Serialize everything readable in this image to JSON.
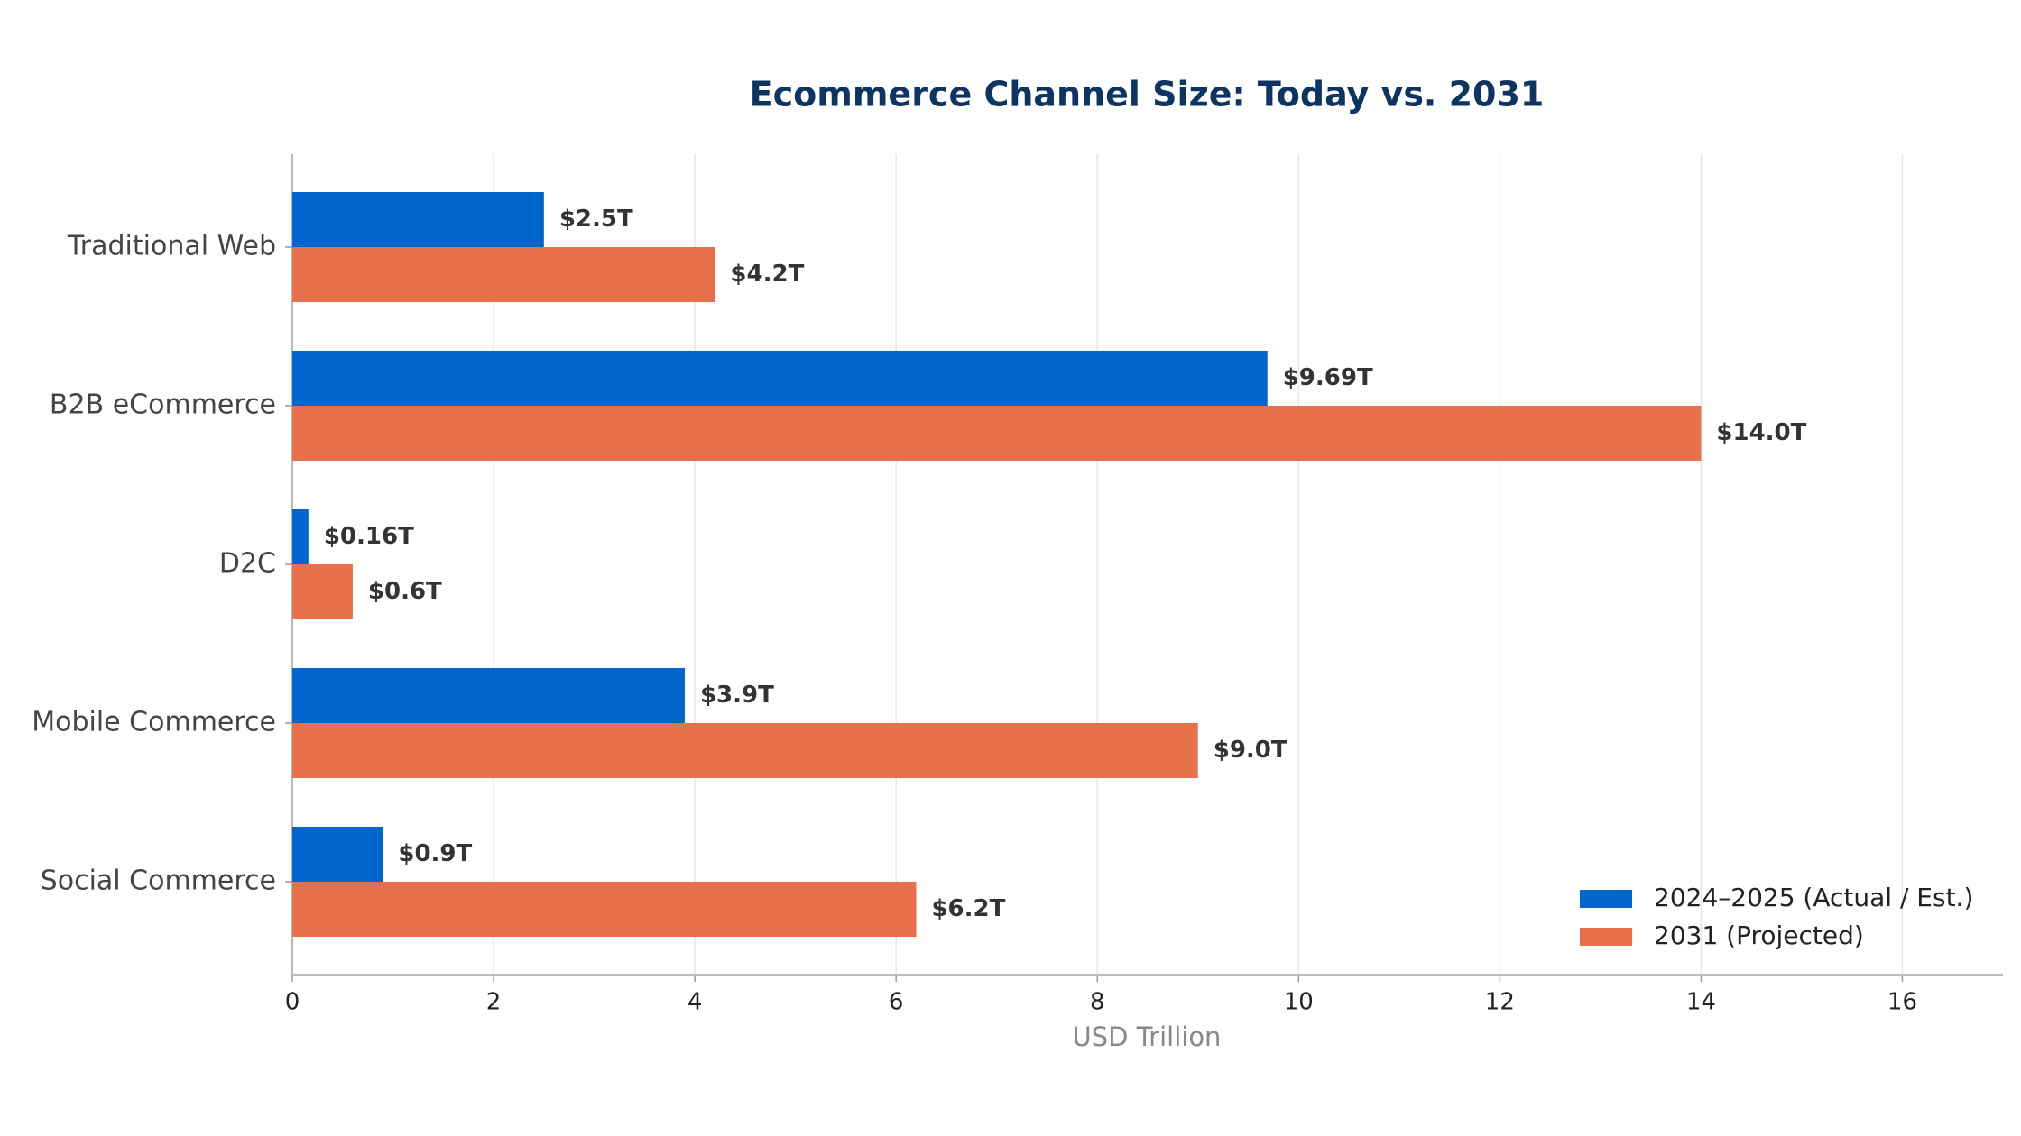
{
  "chart_data": {
    "type": "barh",
    "title": "Ecommerce Channel Size: Today vs. 2031",
    "xlabel": "USD Trillion",
    "categories": [
      "Traditional Web",
      "B2B eCommerce",
      "D2C",
      "Mobile Commerce",
      "Social Commerce"
    ],
    "series": [
      {
        "name": "2024–2025 (Actual / Est.)",
        "color": "#0066cc",
        "values": [
          2.5,
          9.69,
          0.16,
          3.9,
          0.9
        ],
        "value_labels": [
          "$2.5T",
          "$9.69T",
          "$0.16T",
          "$3.9T",
          "$0.9T"
        ]
      },
      {
        "name": "2031 (Projected)",
        "color": "#e8704a",
        "values": [
          4.2,
          14.0,
          0.6,
          9.0,
          6.2
        ],
        "value_labels": [
          "$4.2T",
          "$14.0T",
          "$0.6T",
          "$9.0T",
          "$6.2T"
        ]
      }
    ],
    "xlim": [
      0,
      17
    ],
    "xticks": [
      0,
      2,
      4,
      6,
      8,
      10,
      12,
      14,
      16
    ],
    "grid": true,
    "legend": "lower right"
  }
}
